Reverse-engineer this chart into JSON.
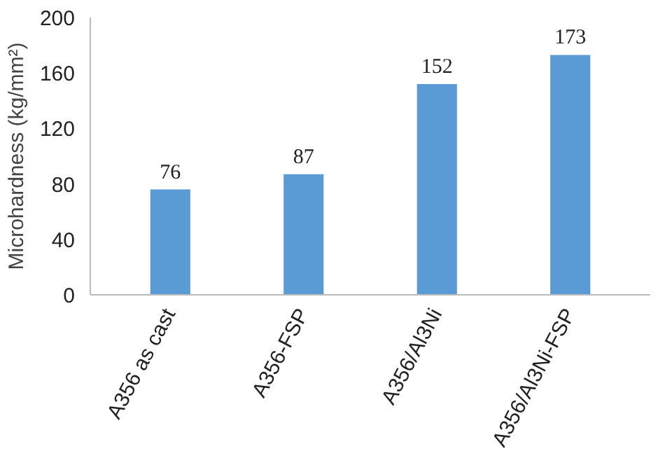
{
  "chart_data": {
    "type": "bar",
    "ylabel": "Microhardness (kg/mm²)",
    "categories": [
      "A356 as cast",
      "A356-FSP",
      "A356/Al3Ni",
      "A356/Al3Ni-FSP"
    ],
    "values": [
      76,
      87,
      152,
      173
    ],
    "color": "#5b9bd5",
    "ylim": [
      0,
      200
    ],
    "yticks": [
      0,
      40,
      80,
      120,
      160,
      200
    ],
    "data_labels": true
  }
}
